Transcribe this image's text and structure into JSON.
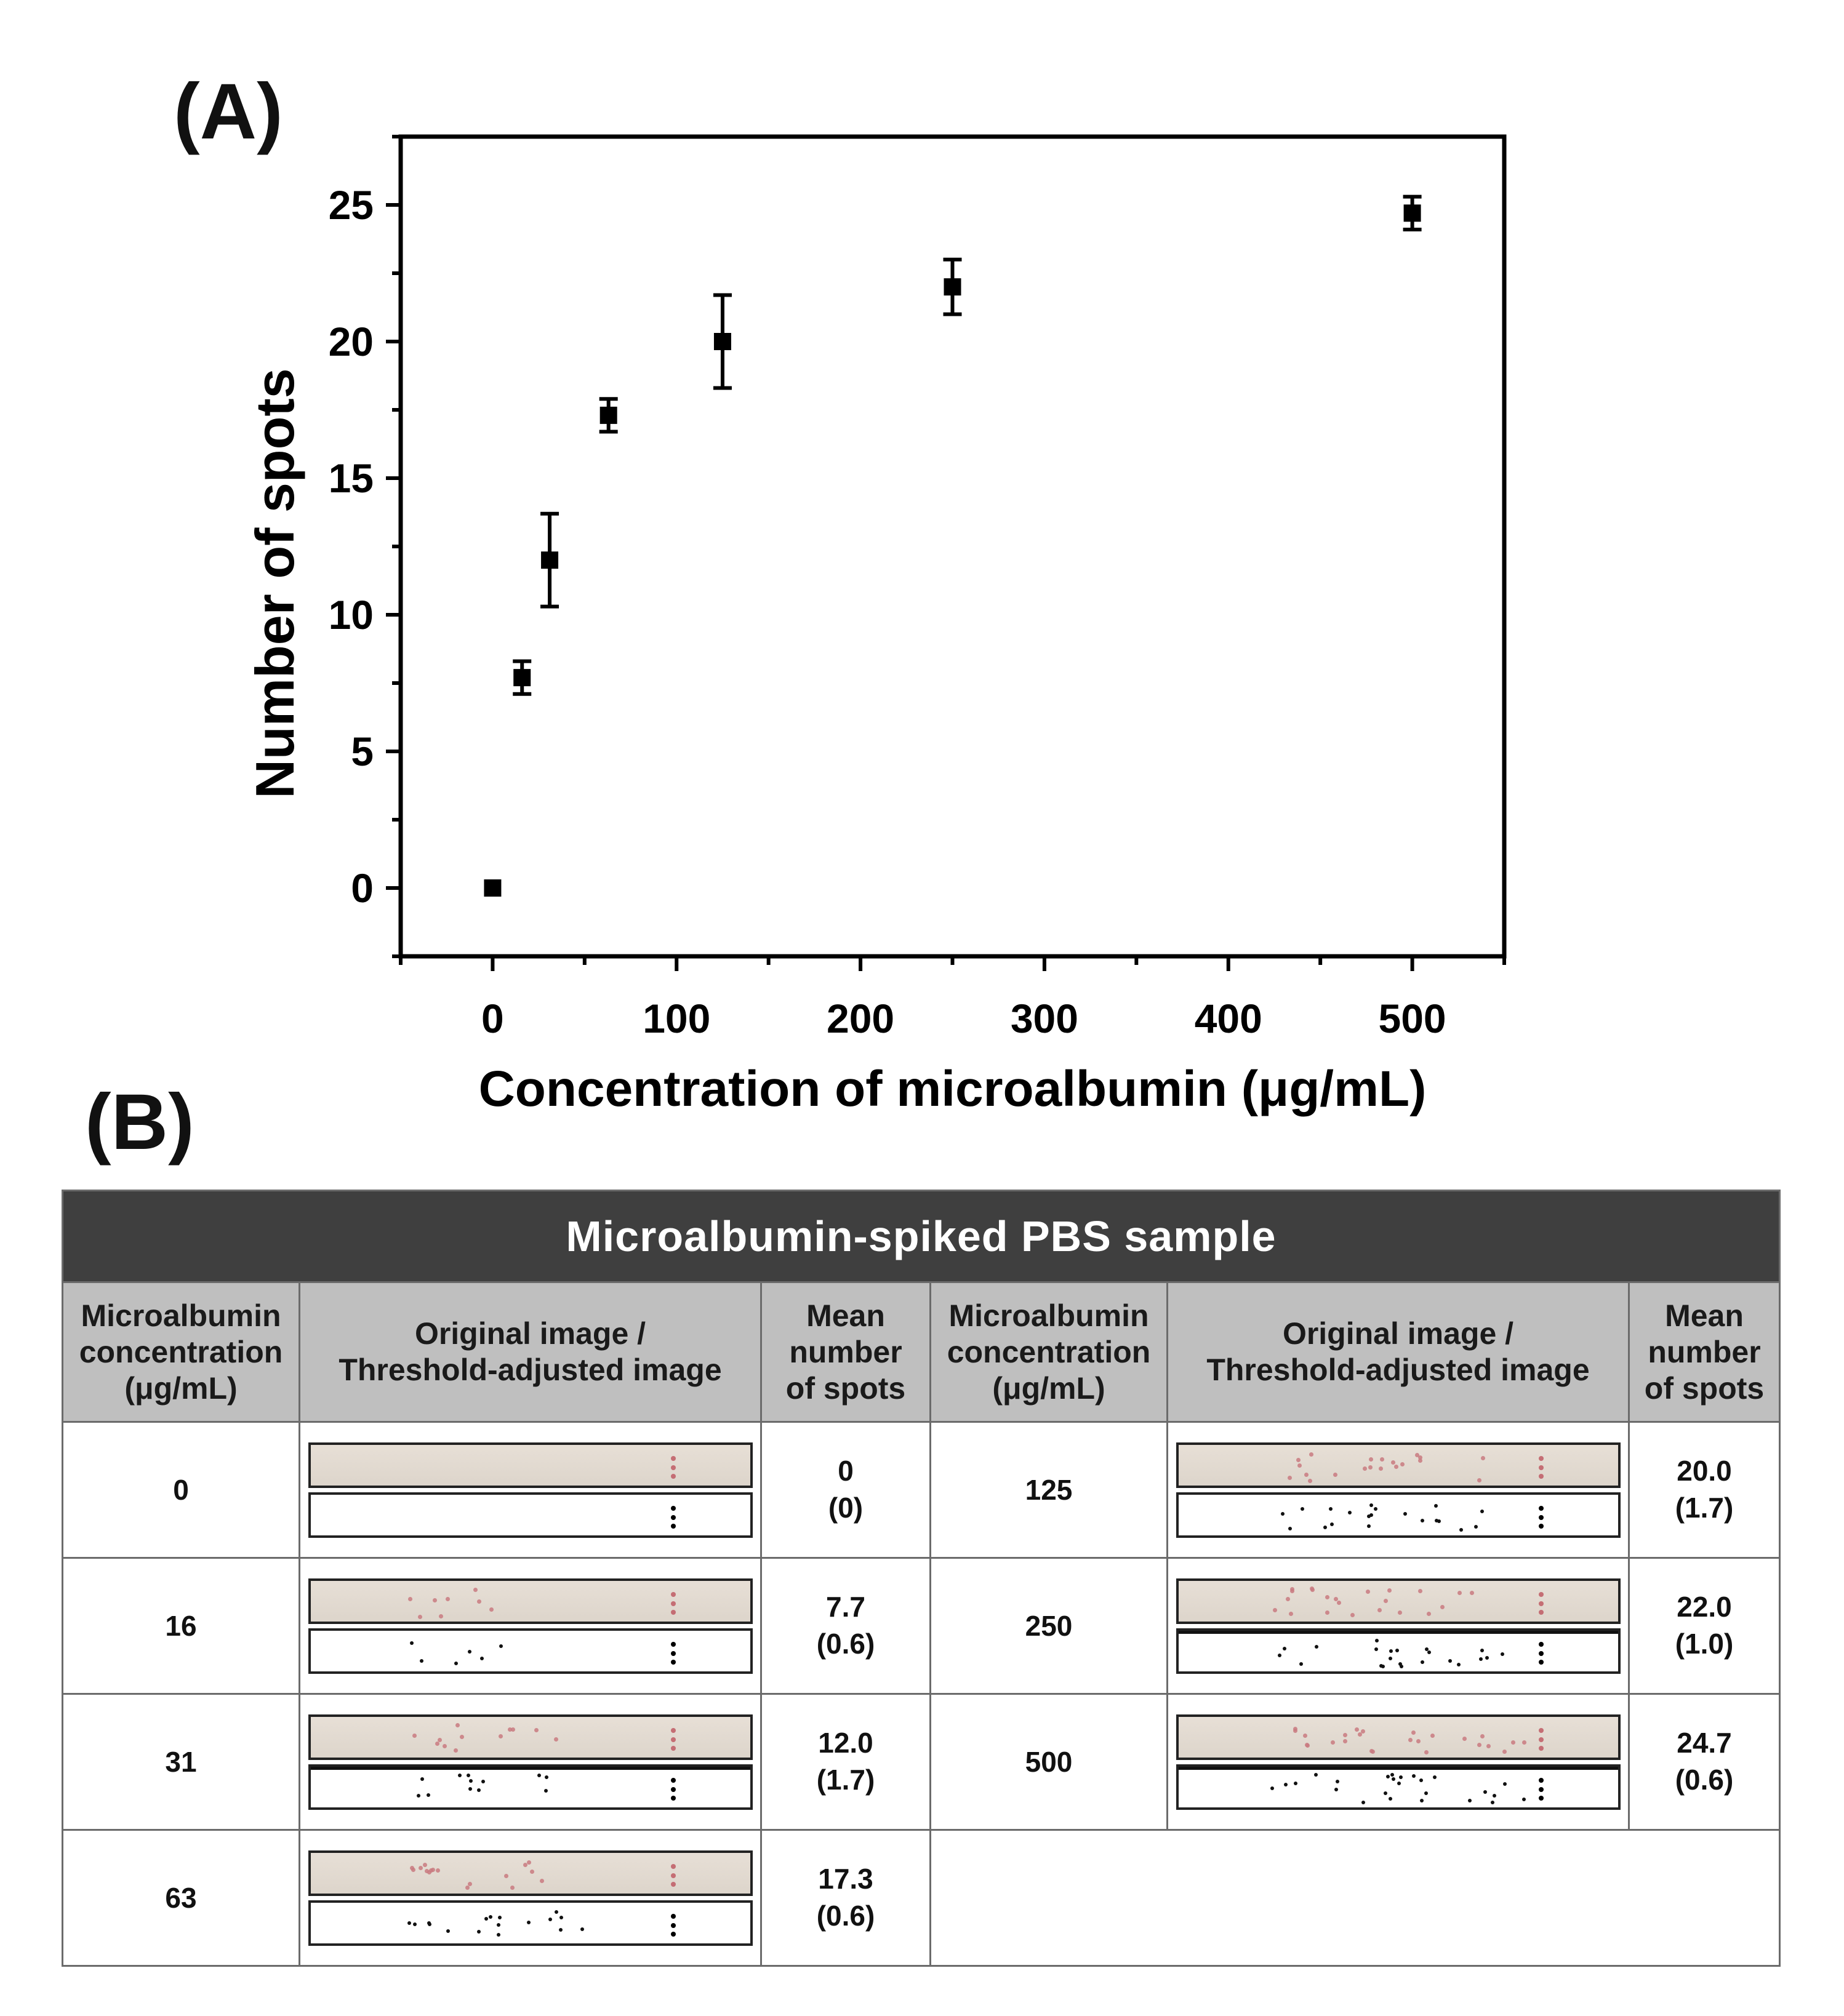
{
  "panel_a_label": "(A)",
  "panel_b_label": "(B)",
  "chart_data": {
    "type": "scatter",
    "title": "",
    "xlabel": "Concentration of microalbumin (μg/mL)",
    "ylabel": "Number of spots",
    "xlim": [
      -50,
      550
    ],
    "ylim": [
      -2.5,
      27.5
    ],
    "xticks": [
      0,
      100,
      200,
      300,
      400,
      500
    ],
    "yticks": [
      0,
      5,
      10,
      15,
      20,
      25
    ],
    "series": [
      {
        "name": "Microalbumin-spiked PBS",
        "x": [
          0,
          16,
          31,
          63,
          125,
          250,
          500
        ],
        "y": [
          0,
          7.7,
          12.0,
          17.3,
          20.0,
          22.0,
          24.7
        ],
        "yerr": [
          0,
          0.6,
          1.7,
          0.6,
          1.7,
          1.0,
          0.6
        ]
      }
    ],
    "grid": false,
    "legend": "none"
  },
  "table": {
    "title": "Microalbumin-spiked PBS sample",
    "headers": {
      "concentration": [
        "Microalbumin",
        "concentration",
        "(μg/mL)"
      ],
      "image": [
        "Original image /",
        "Threshold-adjusted image"
      ],
      "mean": [
        "Mean",
        "number",
        "of spots"
      ]
    },
    "rows": [
      {
        "left": {
          "conc": "0",
          "mean": "0",
          "sd": "(0)"
        },
        "right": {
          "conc": "125",
          "mean": "20.0",
          "sd": "(1.7)"
        }
      },
      {
        "left": {
          "conc": "16",
          "mean": "7.7",
          "sd": "(0.6)"
        },
        "right": {
          "conc": "250",
          "mean": "22.0",
          "sd": "(1.0)"
        }
      },
      {
        "left": {
          "conc": "31",
          "mean": "12.0",
          "sd": "(1.7)"
        },
        "right": {
          "conc": "500",
          "mean": "24.7",
          "sd": "(0.6)"
        }
      },
      {
        "left": {
          "conc": "63",
          "mean": "17.3",
          "sd": "(0.6)"
        }
      }
    ]
  }
}
